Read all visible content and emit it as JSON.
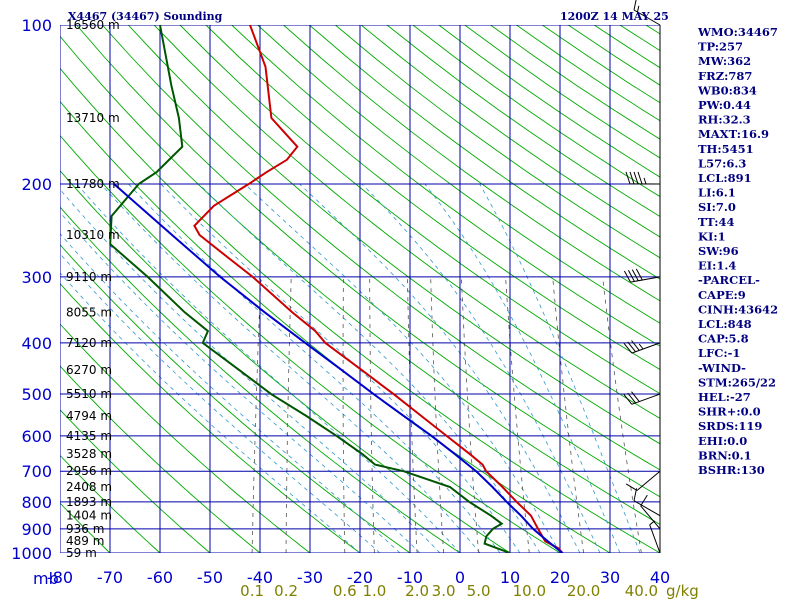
{
  "header": {
    "station": "X4467 (34467) Sounding",
    "datetime": "1200Z 14 MAY 25"
  },
  "indices": [
    "WMO:34467",
    "TP:257",
    "MW:362",
    "FRZ:787",
    "WB0:834",
    "PW:0.44",
    "RH:32.3",
    "MAXT:16.9",
    "TH:5451",
    "L57:6.3",
    "LCL:891",
    "LI:6.1",
    "SI:7.0",
    "TT:44",
    "KI:1",
    "SW:96",
    "EI:1.4",
    "-PARCEL-",
    "CAPE:9",
    "CINH:43642",
    "LCL:848",
    "CAP:5.8",
    "LFC:-1",
    "-WIND-",
    "STM:265/22",
    "HEL:-27",
    "SHR+:0.0",
    "SRDS:119",
    "EHI:0.0",
    "BRN:0.1",
    "BSHR:130"
  ],
  "colors": {
    "grid": "#0000aa",
    "dry_adiabat": "#00aa00",
    "moist_adiabat": "#3399cc",
    "mixing_ratio": "#555555",
    "temperature": "#cc0000",
    "dewpoint": "#005500",
    "parcel": "#0000cc",
    "label_blue": "#0000cc",
    "mixing_ratio_label": "#808000"
  },
  "chart_data": {
    "type": "skew-t",
    "xlabel": "",
    "ylabel": "mb",
    "pressure_unit": "mb",
    "mixing_ratio_unit": "g/kg",
    "pressure_levels": [
      100,
      200,
      300,
      400,
      500,
      600,
      700,
      800,
      900,
      1000
    ],
    "pressure_labels": [
      "100",
      "200",
      "300",
      "400",
      "500",
      "600",
      "700",
      "800",
      "900",
      "1000"
    ],
    "temperature_ticks": [
      -80,
      -70,
      -60,
      -50,
      -40,
      -30,
      -20,
      -10,
      0,
      10,
      20,
      30,
      40
    ],
    "temperature_labels": [
      "-80",
      "-70",
      "-60",
      "-50",
      "-40",
      "-30",
      "-20",
      "-10",
      "0",
      "10",
      "20",
      "30",
      "40"
    ],
    "height_levels": [
      {
        "p": 100,
        "label": "16560 m"
      },
      {
        "p": 150,
        "label": "13710 m"
      },
      {
        "p": 200,
        "label": "11780 m"
      },
      {
        "p": 250,
        "label": "10310 m"
      },
      {
        "p": 300,
        "label": "9110 m"
      },
      {
        "p": 350,
        "label": "8055 m"
      },
      {
        "p": 400,
        "label": "7120 m"
      },
      {
        "p": 450,
        "label": "6270 m"
      },
      {
        "p": 500,
        "label": "5510 m"
      },
      {
        "p": 550,
        "label": "4794 m"
      },
      {
        "p": 600,
        "label": "4135 m"
      },
      {
        "p": 650,
        "label": "3528 m"
      },
      {
        "p": 700,
        "label": "2956 m"
      },
      {
        "p": 750,
        "label": "2408 m"
      },
      {
        "p": 800,
        "label": "1893 m"
      },
      {
        "p": 850,
        "label": "1404 m"
      },
      {
        "p": 900,
        "label": "936 m"
      },
      {
        "p": 950,
        "label": "489 m"
      },
      {
        "p": 1000,
        "label": "59 m"
      }
    ],
    "mixing_ratio_values": [
      0.1,
      0.2,
      0.6,
      1.0,
      2.0,
      3.0,
      5.0,
      10.0,
      20.0,
      40.0
    ],
    "mixing_ratio_labels": [
      "0.1",
      "0.2",
      "0.6",
      "1.0",
      "2.0",
      "3.0",
      "5.0",
      "10.0",
      "20.0",
      "40.0"
    ],
    "series": [
      {
        "key": "temperature",
        "points": [
          {
            "p": 100,
            "t": -66.0
          },
          {
            "p": 120,
            "t": -61.0
          },
          {
            "p": 150,
            "t": -57.5
          },
          {
            "p": 170,
            "t": -51.0
          },
          {
            "p": 180,
            "t": -52.5
          },
          {
            "p": 190,
            "t": -56.0
          },
          {
            "p": 200,
            "t": -59.0
          },
          {
            "p": 220,
            "t": -65.0
          },
          {
            "p": 240,
            "t": -68.0
          },
          {
            "p": 250,
            "t": -66.5
          },
          {
            "p": 275,
            "t": -60.0
          },
          {
            "p": 300,
            "t": -54.0
          },
          {
            "p": 350,
            "t": -44.5
          },
          {
            "p": 380,
            "t": -39.0
          },
          {
            "p": 400,
            "t": -36.5
          },
          {
            "p": 450,
            "t": -28.0
          },
          {
            "p": 500,
            "t": -20.5
          },
          {
            "p": 550,
            "t": -14.0
          },
          {
            "p": 600,
            "t": -8.0
          },
          {
            "p": 650,
            "t": -2.5
          },
          {
            "p": 680,
            "t": 0.5
          },
          {
            "p": 700,
            "t": 1.5
          },
          {
            "p": 750,
            "t": 5.5
          },
          {
            "p": 800,
            "t": 9.0
          },
          {
            "p": 850,
            "t": 12.5
          },
          {
            "p": 900,
            "t": 14.5
          },
          {
            "p": 950,
            "t": 16.5
          },
          {
            "p": 980,
            "t": 19.5
          },
          {
            "p": 1000,
            "t": 20.5
          }
        ]
      },
      {
        "key": "dewpoint",
        "points": [
          {
            "p": 100,
            "t": -84.0
          },
          {
            "p": 130,
            "t": -79.0
          },
          {
            "p": 150,
            "t": -76.0
          },
          {
            "p": 170,
            "t": -74.0
          },
          {
            "p": 190,
            "t": -78.0
          },
          {
            "p": 200,
            "t": -81.0
          },
          {
            "p": 230,
            "t": -85.0
          },
          {
            "p": 260,
            "t": -84.0
          },
          {
            "p": 300,
            "t": -75.0
          },
          {
            "p": 350,
            "t": -66.0
          },
          {
            "p": 380,
            "t": -60.5
          },
          {
            "p": 400,
            "t": -61.0
          },
          {
            "p": 450,
            "t": -52.5
          },
          {
            "p": 500,
            "t": -45.0
          },
          {
            "p": 550,
            "t": -37.0
          },
          {
            "p": 600,
            "t": -30.0
          },
          {
            "p": 650,
            "t": -24.0
          },
          {
            "p": 680,
            "t": -21.0
          },
          {
            "p": 700,
            "t": -15.0
          },
          {
            "p": 750,
            "t": -5.0
          },
          {
            "p": 800,
            "t": -0.5
          },
          {
            "p": 850,
            "t": 4.5
          },
          {
            "p": 880,
            "t": 7.0
          },
          {
            "p": 900,
            "t": 5.5
          },
          {
            "p": 930,
            "t": 4.5
          },
          {
            "p": 960,
            "t": 4.5
          },
          {
            "p": 1000,
            "t": 10.0
          }
        ]
      },
      {
        "key": "parcel",
        "points": [
          {
            "p": 200,
            "t": -86.0
          },
          {
            "p": 250,
            "t": -72.0
          },
          {
            "p": 300,
            "t": -60.5
          },
          {
            "p": 350,
            "t": -50.0
          },
          {
            "p": 400,
            "t": -40.5
          },
          {
            "p": 450,
            "t": -32.0
          },
          {
            "p": 500,
            "t": -24.5
          },
          {
            "p": 550,
            "t": -17.5
          },
          {
            "p": 600,
            "t": -11.0
          },
          {
            "p": 650,
            "t": -5.5
          },
          {
            "p": 700,
            "t": -0.5
          },
          {
            "p": 750,
            "t": 3.5
          },
          {
            "p": 800,
            "t": 7.0
          },
          {
            "p": 850,
            "t": 10.5
          },
          {
            "p": 900,
            "t": 13.5
          },
          {
            "p": 950,
            "t": 17.0
          },
          {
            "p": 1000,
            "t": 20.5
          }
        ]
      }
    ],
    "wind_barbs": [
      {
        "p": 100,
        "dir": 300,
        "kt": 15
      },
      {
        "p": 200,
        "dir": 270,
        "kt": 45
      },
      {
        "p": 300,
        "dir": 260,
        "kt": 40
      },
      {
        "p": 400,
        "dir": 250,
        "kt": 35
      },
      {
        "p": 500,
        "dir": 250,
        "kt": 30
      },
      {
        "p": 700,
        "dir": 230,
        "kt": 10
      },
      {
        "p": 850,
        "dir": 300,
        "kt": 10
      },
      {
        "p": 900,
        "dir": 320,
        "kt": 10
      },
      {
        "p": 1000,
        "dir": 340,
        "kt": 5
      }
    ]
  }
}
